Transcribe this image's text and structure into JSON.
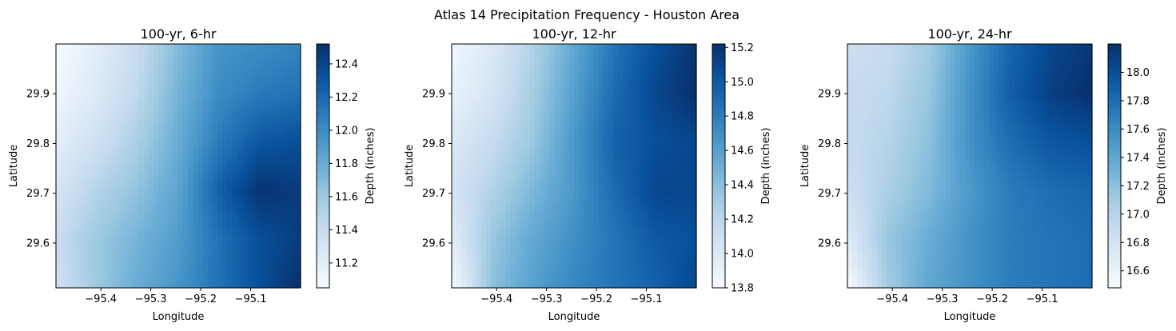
{
  "figure": {
    "suptitle": "Atlas 14 Precipitation Frequency - Houston Area",
    "colormap": "Blues",
    "colormap_stops": [
      "#f7fbff",
      "#deebf7",
      "#c6dbef",
      "#9ecae1",
      "#6baed6",
      "#4292c6",
      "#2171b5",
      "#08519c",
      "#08306b"
    ]
  },
  "chart_data": [
    {
      "type": "heatmap",
      "title": "100-yr, 6-hr",
      "xlabel": "Longitude",
      "ylabel": "Latitude",
      "xlim": [
        -95.49,
        -95.0
      ],
      "ylim": [
        29.51,
        30.0
      ],
      "xticks": [
        -95.4,
        -95.3,
        -95.2,
        -95.1
      ],
      "xtick_labels": [
        "−95.4",
        "−95.3",
        "−95.2",
        "−95.1"
      ],
      "yticks": [
        29.6,
        29.7,
        29.8,
        29.9
      ],
      "ytick_labels": [
        "29.6",
        "29.7",
        "29.8",
        "29.9"
      ],
      "colorbar": {
        "label": "Depth (inches)",
        "range": [
          11.05,
          12.52
        ],
        "ticks": [
          11.2,
          11.4,
          11.6,
          11.8,
          12.0,
          12.2,
          12.4
        ],
        "tick_labels": [
          "11.2",
          "11.4",
          "11.6",
          "11.8",
          "12.0",
          "12.2",
          "12.4"
        ]
      },
      "grid": {
        "rows": 6,
        "cols": 7,
        "row_order": "north_to_south",
        "values": [
          [
            11.05,
            11.2,
            11.4,
            11.7,
            11.95,
            12.0,
            12.05
          ],
          [
            11.1,
            11.25,
            11.45,
            11.75,
            12.0,
            12.1,
            12.15
          ],
          [
            11.2,
            11.35,
            11.55,
            11.8,
            12.1,
            12.3,
            12.35
          ],
          [
            11.3,
            11.5,
            11.65,
            11.85,
            12.25,
            12.5,
            12.45
          ],
          [
            11.4,
            11.6,
            11.75,
            11.9,
            12.15,
            12.35,
            12.45
          ],
          [
            11.35,
            11.6,
            11.8,
            11.95,
            12.15,
            12.35,
            12.52
          ]
        ]
      }
    },
    {
      "type": "heatmap",
      "title": "100-yr, 12-hr",
      "xlabel": "Longitude",
      "ylabel": "Latitude",
      "xlim": [
        -95.49,
        -95.0
      ],
      "ylim": [
        29.51,
        30.0
      ],
      "xticks": [
        -95.4,
        -95.3,
        -95.2,
        -95.1
      ],
      "xtick_labels": [
        "−95.4",
        "−95.3",
        "−95.2",
        "−95.1"
      ],
      "yticks": [
        29.6,
        29.7,
        29.8,
        29.9
      ],
      "ytick_labels": [
        "29.6",
        "29.7",
        "29.8",
        "29.9"
      ],
      "colorbar": {
        "label": "Depth (inches)",
        "range": [
          13.8,
          15.22
        ],
        "ticks": [
          13.8,
          14.0,
          14.2,
          14.4,
          14.6,
          14.8,
          15.0,
          15.2
        ],
        "tick_labels": [
          "13.8",
          "14.0",
          "14.2",
          "14.4",
          "14.6",
          "14.8",
          "15.0",
          "15.2"
        ]
      },
      "grid": {
        "rows": 6,
        "cols": 7,
        "row_order": "north_to_south",
        "values": [
          [
            13.85,
            14.0,
            14.25,
            14.55,
            14.85,
            15.05,
            15.2
          ],
          [
            13.9,
            14.05,
            14.3,
            14.6,
            14.9,
            15.1,
            15.22
          ],
          [
            14.0,
            14.15,
            14.35,
            14.65,
            14.95,
            15.05,
            15.1
          ],
          [
            14.05,
            14.25,
            14.45,
            14.65,
            14.9,
            15.1,
            15.1
          ],
          [
            13.95,
            14.35,
            14.55,
            14.7,
            14.85,
            15.0,
            15.05
          ],
          [
            13.8,
            14.4,
            14.6,
            14.75,
            14.85,
            14.95,
            15.1
          ]
        ]
      }
    },
    {
      "type": "heatmap",
      "title": "100-yr, 24-hr",
      "xlabel": "Longitude",
      "ylabel": "Latitude",
      "xlim": [
        -95.49,
        -95.0
      ],
      "ylim": [
        29.51,
        30.0
      ],
      "xticks": [
        -95.4,
        -95.3,
        -95.2,
        -95.1
      ],
      "xtick_labels": [
        "−95.4",
        "−95.3",
        "−95.2",
        "−95.1"
      ],
      "yticks": [
        29.6,
        29.7,
        29.8,
        29.9
      ],
      "ytick_labels": [
        "29.6",
        "29.7",
        "29.8",
        "29.9"
      ],
      "colorbar": {
        "label": "Depth (inches)",
        "range": [
          16.48,
          18.2
        ],
        "ticks": [
          16.6,
          16.8,
          17.0,
          17.2,
          17.4,
          17.6,
          17.8,
          18.0
        ],
        "tick_labels": [
          "16.6",
          "16.8",
          "17.0",
          "17.2",
          "17.4",
          "17.6",
          "17.8",
          "18.0"
        ]
      },
      "grid": {
        "rows": 6,
        "cols": 7,
        "row_order": "north_to_south",
        "values": [
          [
            16.85,
            16.9,
            17.1,
            17.5,
            17.85,
            18.05,
            18.15
          ],
          [
            16.9,
            16.95,
            17.15,
            17.55,
            17.9,
            18.1,
            18.2
          ],
          [
            16.9,
            17.0,
            17.2,
            17.55,
            17.8,
            17.95,
            18.0
          ],
          [
            16.85,
            17.05,
            17.25,
            17.5,
            17.7,
            17.8,
            17.85
          ],
          [
            16.7,
            17.15,
            17.35,
            17.55,
            17.7,
            17.75,
            17.8
          ],
          [
            16.48,
            17.1,
            17.4,
            17.55,
            17.7,
            17.75,
            17.8
          ]
        ]
      }
    }
  ]
}
